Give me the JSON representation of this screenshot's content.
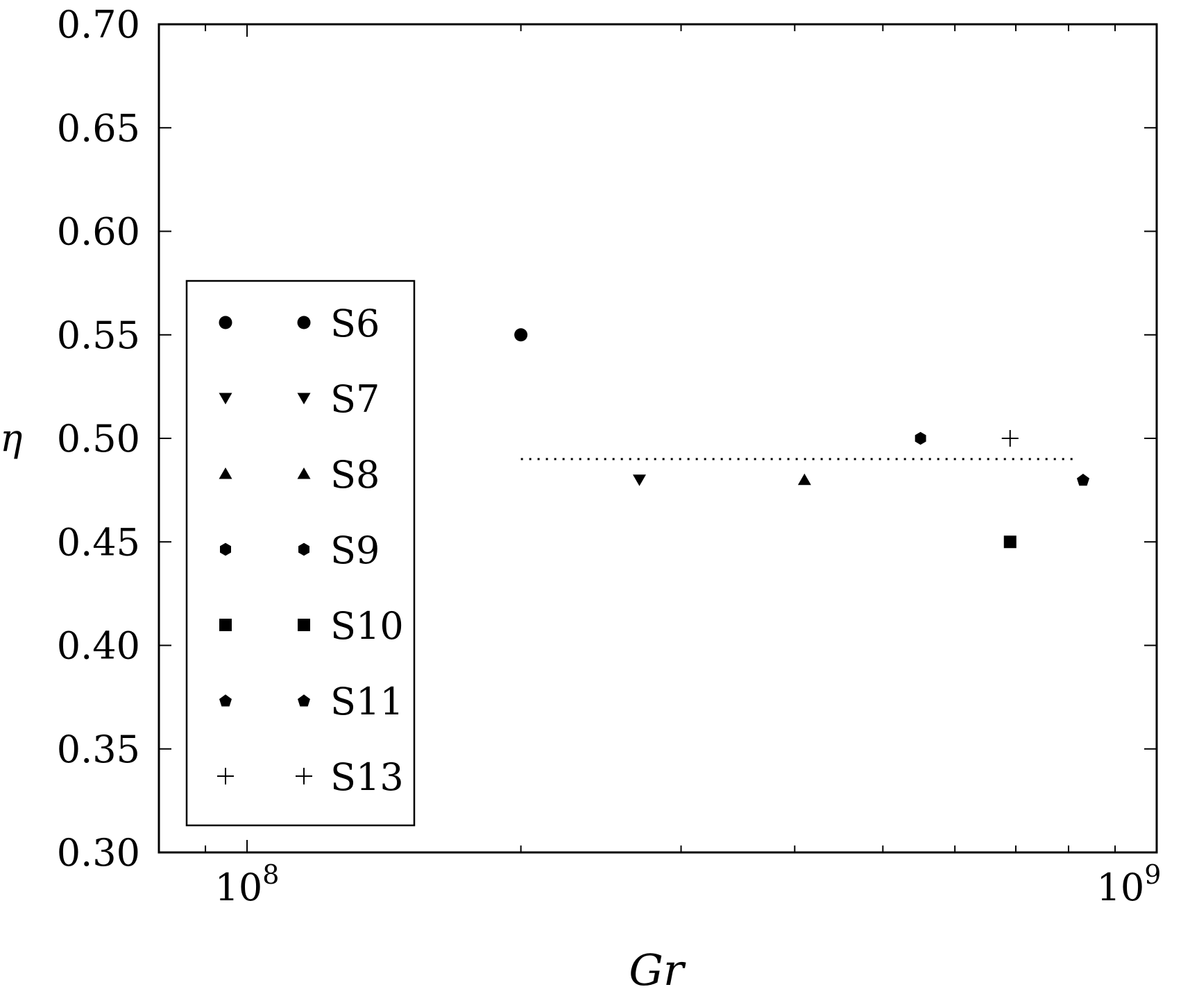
{
  "chart_data": {
    "type": "scatter",
    "title": "",
    "xlabel": "Gr",
    "ylabel": "η",
    "x_scale": "log",
    "xlim": [
      80000000,
      1000000000
    ],
    "ylim": [
      0.3,
      0.7
    ],
    "x_ticks": [
      {
        "value": 100000000,
        "base": "10",
        "exp": "8"
      },
      {
        "value": 1000000000,
        "base": "10",
        "exp": "9"
      }
    ],
    "y_ticks": [
      "0.30",
      "0.35",
      "0.40",
      "0.45",
      "0.50",
      "0.55",
      "0.60",
      "0.65",
      "0.70"
    ],
    "grid": false,
    "legend_position": "left-middle",
    "reference_line": {
      "y": 0.49,
      "x_range": [
        200000000,
        800000000
      ],
      "style": "dotted"
    },
    "series": [
      {
        "name": "S6",
        "marker": "circle",
        "points": [
          {
            "x": 200000000,
            "y": 0.55
          }
        ]
      },
      {
        "name": "S7",
        "marker": "triangle-down",
        "points": [
          {
            "x": 270000000,
            "y": 0.48
          }
        ]
      },
      {
        "name": "S8",
        "marker": "triangle-up",
        "points": [
          {
            "x": 410000000,
            "y": 0.48
          }
        ]
      },
      {
        "name": "S9",
        "marker": "hexagon",
        "points": [
          {
            "x": 550000000,
            "y": 0.5
          }
        ]
      },
      {
        "name": "S10",
        "marker": "square",
        "points": [
          {
            "x": 690000000,
            "y": 0.45
          }
        ]
      },
      {
        "name": "S11",
        "marker": "pentagon",
        "points": [
          {
            "x": 830000000,
            "y": 0.48
          }
        ]
      },
      {
        "name": "S13",
        "marker": "plus",
        "points": [
          {
            "x": 690000000,
            "y": 0.5
          }
        ]
      }
    ]
  }
}
